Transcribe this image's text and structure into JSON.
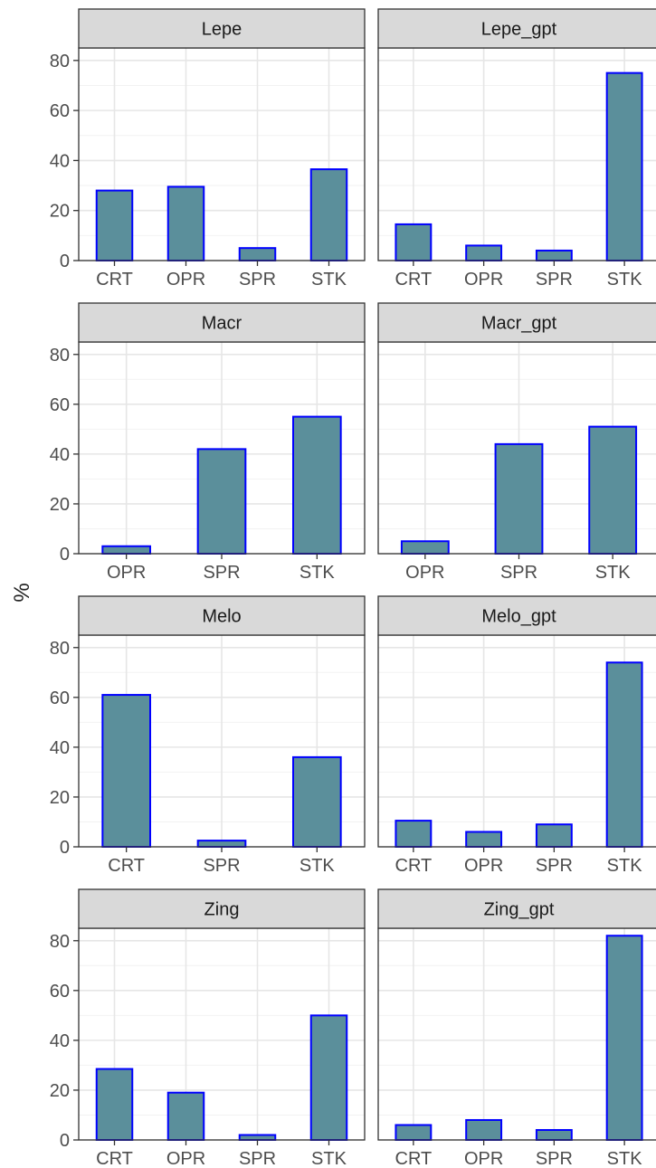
{
  "chart_data": {
    "type": "bar",
    "layout": "facet-grid",
    "ylabel": "%",
    "ylim": [
      0,
      85
    ],
    "y_ticks": [
      0,
      20,
      40,
      60,
      80
    ],
    "grid": true,
    "bar_fill": "#5b8f9b",
    "bar_stroke": "#0000ff",
    "strip_fill": "#d9d9d9",
    "panels": [
      {
        "title": "Lepe",
        "categories": [
          "CRT",
          "OPR",
          "SPR",
          "STK"
        ],
        "values": [
          28,
          29.5,
          5,
          36.5
        ]
      },
      {
        "title": "Lepe_gpt",
        "categories": [
          "CRT",
          "OPR",
          "SPR",
          "STK"
        ],
        "values": [
          14.5,
          6,
          4,
          75
        ]
      },
      {
        "title": "Macr",
        "categories": [
          "OPR",
          "SPR",
          "STK"
        ],
        "values": [
          3,
          42,
          55
        ]
      },
      {
        "title": "Macr_gpt",
        "categories": [
          "OPR",
          "SPR",
          "STK"
        ],
        "values": [
          5,
          44,
          51
        ]
      },
      {
        "title": "Melo",
        "categories": [
          "CRT",
          "SPR",
          "STK"
        ],
        "values": [
          61,
          2.5,
          36
        ]
      },
      {
        "title": "Melo_gpt",
        "categories": [
          "CRT",
          "OPR",
          "SPR",
          "STK"
        ],
        "values": [
          10.5,
          6,
          9,
          74
        ]
      },
      {
        "title": "Zing",
        "categories": [
          "CRT",
          "OPR",
          "SPR",
          "STK"
        ],
        "values": [
          28.5,
          19,
          2,
          50
        ]
      },
      {
        "title": "Zing_gpt",
        "categories": [
          "CRT",
          "OPR",
          "SPR",
          "STK"
        ],
        "values": [
          6,
          8,
          4,
          82
        ]
      }
    ]
  }
}
